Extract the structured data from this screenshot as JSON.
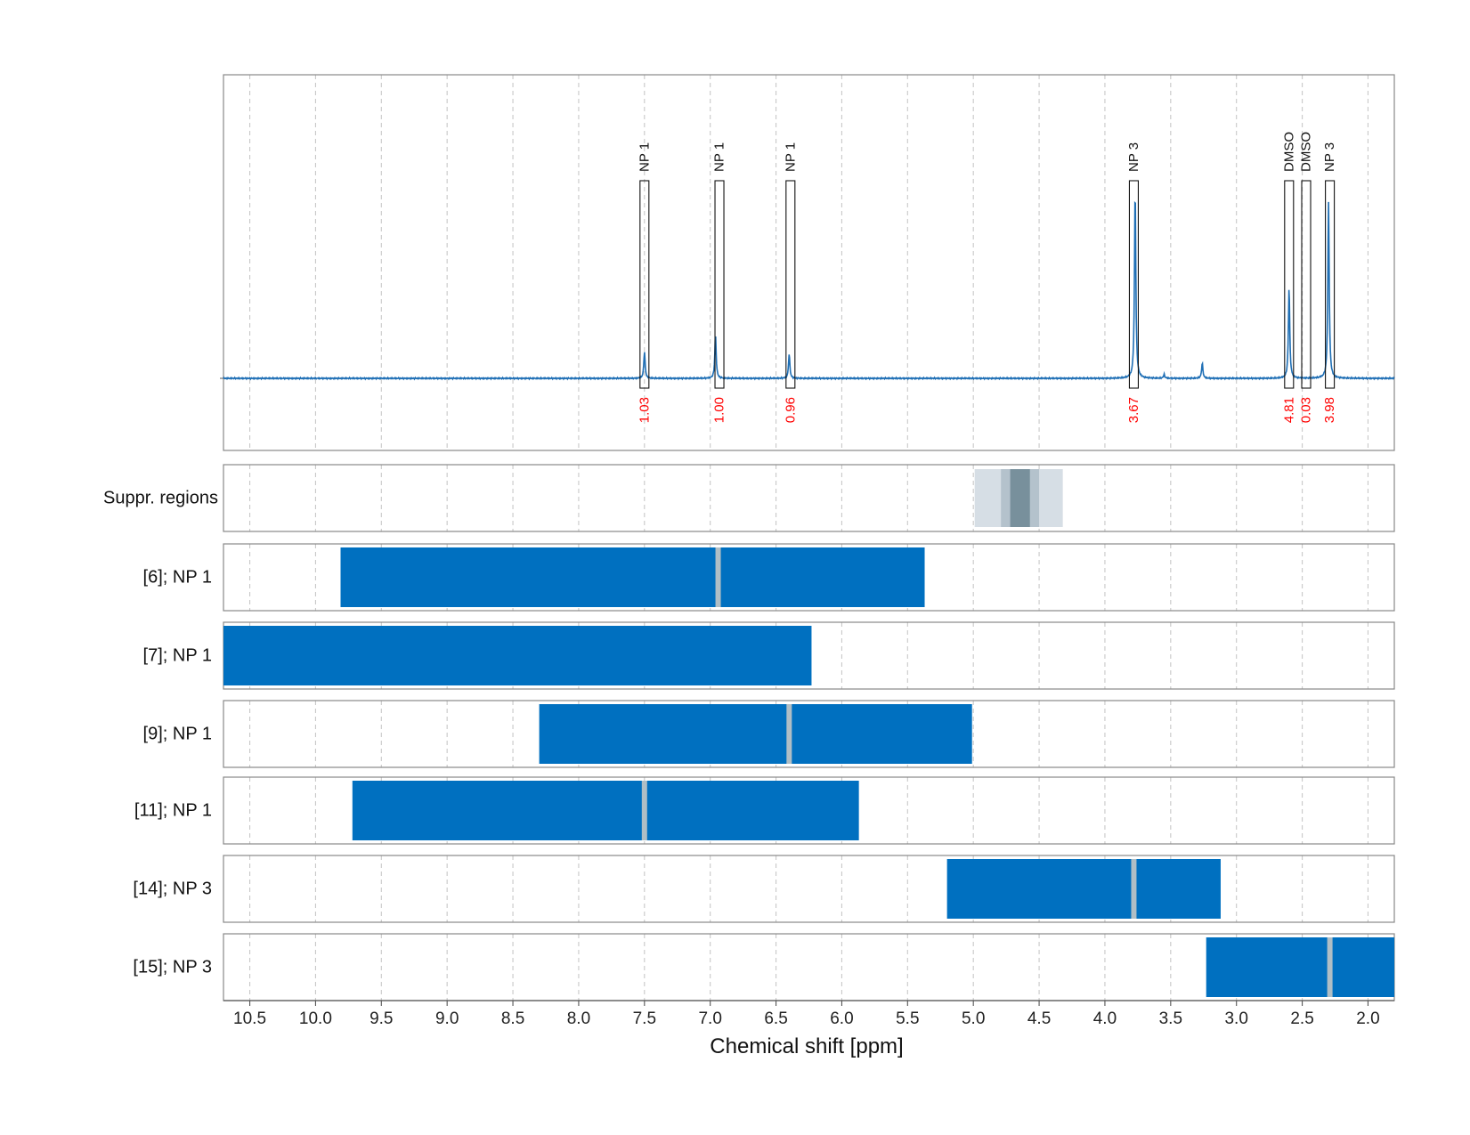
{
  "chart_data": {
    "type": "nmr-spectrum",
    "xlabel": "Chemical shift [ppm]",
    "xlim": [
      10.7,
      1.8
    ],
    "x_reversed": true,
    "x_ticks": [
      10.5,
      10.0,
      9.5,
      9.0,
      8.5,
      8.0,
      7.5,
      7.0,
      6.5,
      6.0,
      5.5,
      5.0,
      4.5,
      4.0,
      3.5,
      3.0,
      2.5,
      2.0
    ],
    "x_tick_labels": [
      "10.5",
      "10.0",
      "9.5",
      "9.0",
      "8.5",
      "8.0",
      "7.5",
      "7.0",
      "6.5",
      "6.0",
      "5.5",
      "5.0",
      "4.5",
      "4.0",
      "3.5",
      "3.0",
      "2.5",
      "2.0"
    ],
    "grid": "vertical dashed",
    "colors": {
      "spectrum": "#1f6fb5",
      "bar": "#0070c0",
      "integral": "#ff0000",
      "bar_divider": "#b0bec5",
      "suppr_light": "#d6dee5",
      "suppr_mid": "#b4c2cc",
      "suppr_dark": "#78909c"
    },
    "spectrum": {
      "baseline": 0,
      "ylim": [
        -0.38,
        1.6
      ],
      "peaks": [
        {
          "ppm": 7.5,
          "height": 0.14
        },
        {
          "ppm": 6.96,
          "height": 0.23
        },
        {
          "ppm": 6.4,
          "height": 0.13
        },
        {
          "ppm": 3.77,
          "height": 1.0
        },
        {
          "ppm": 3.55,
          "height": 0.02
        },
        {
          "ppm": 3.26,
          "height": 0.08
        },
        {
          "ppm": 2.6,
          "height": 0.48
        },
        {
          "ppm": 2.3,
          "height": 0.93
        }
      ]
    },
    "annotations": [
      {
        "ppm": 7.5,
        "label": "NP 1",
        "integral": "1.03"
      },
      {
        "ppm": 6.93,
        "label": "NP 1",
        "integral": "1.00"
      },
      {
        "ppm": 6.39,
        "label": "NP 1",
        "integral": "0.96"
      },
      {
        "ppm": 3.78,
        "label": "NP 3",
        "integral": "3.67"
      },
      {
        "ppm": 2.6,
        "label": "DMSO",
        "integral": "4.81"
      },
      {
        "ppm": 2.47,
        "label": "DMSO",
        "integral": "0.03"
      },
      {
        "ppm": 2.29,
        "label": "NP 3",
        "integral": "3.98"
      }
    ],
    "suppression": {
      "label": "Suppr. regions",
      "bands": [
        {
          "from": 4.99,
          "to": 4.32,
          "level": "light"
        },
        {
          "from": 4.79,
          "to": 4.5,
          "level": "mid"
        },
        {
          "from": 4.72,
          "to": 4.57,
          "level": "dark"
        }
      ]
    },
    "rows": [
      {
        "label": "[6]; NP 1",
        "from": 9.81,
        "to": 5.37,
        "marker": 6.94
      },
      {
        "label": "[7]; NP 1",
        "from": 10.7,
        "to": 6.23,
        "marker": null
      },
      {
        "label": "[9]; NP 1",
        "from": 8.3,
        "to": 5.01,
        "marker": 6.4
      },
      {
        "label": "[11]; NP 1",
        "from": 9.72,
        "to": 5.87,
        "marker": 7.5
      },
      {
        "label": "[14]; NP 3",
        "from": 5.2,
        "to": 3.12,
        "marker": 3.78
      },
      {
        "label": "[15]; NP 3",
        "from": 3.23,
        "to": 1.8,
        "marker": 2.29
      }
    ]
  }
}
